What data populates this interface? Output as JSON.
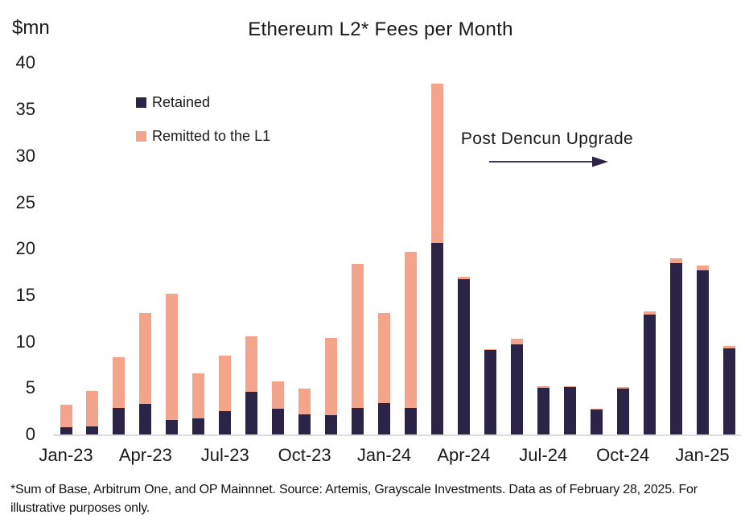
{
  "unit_label": "$mn",
  "title": "Ethereum L2* Fees per Month",
  "legend": {
    "retained_label": "Retained",
    "remitted_label": "Remitted to the L1"
  },
  "annotation": {
    "text": "Post Dencun Upgrade",
    "arrow_direction": "right"
  },
  "footnote": "*Sum of Base, Arbitrum One, and OP Mainnnet. Source: Artemis, Grayscale Investments. Data as of February 28, 2025. For illustrative purposes only.",
  "colors": {
    "retained": "#2b2447",
    "remitted": "#f4a48a",
    "axis_line": "#dcdcdc",
    "arrow": "#403d5e",
    "text": "#1a1a1a"
  },
  "chart_data": {
    "type": "bar",
    "stacked": true,
    "title": "Ethereum L2* Fees per Month",
    "ylabel": "$mn",
    "xlabel": "",
    "ylim": [
      0,
      40
    ],
    "y_ticks": [
      0,
      5,
      10,
      15,
      20,
      25,
      30,
      35,
      40
    ],
    "grid": false,
    "legend_position": "upper-left-inside",
    "x_tick_every": 3,
    "categories": [
      "Jan-23",
      "Feb-23",
      "Mar-23",
      "Apr-23",
      "May-23",
      "Jun-23",
      "Jul-23",
      "Aug-23",
      "Sep-23",
      "Oct-23",
      "Nov-23",
      "Dec-23",
      "Jan-24",
      "Feb-24",
      "Mar-24",
      "Apr-24",
      "May-24",
      "Jun-24",
      "Jul-24",
      "Aug-24",
      "Sep-24",
      "Oct-24",
      "Nov-24",
      "Dec-24",
      "Jan-25",
      "Feb-25"
    ],
    "visible_x_tick_labels": [
      "Jan-23",
      "Apr-23",
      "Jul-23",
      "Oct-23",
      "Jan-24",
      "Apr-24",
      "Jul-24",
      "Oct-24",
      "Jan-25"
    ],
    "series": [
      {
        "name": "Retained",
        "color": "#2b2447",
        "values": [
          0.8,
          0.9,
          2.9,
          3.3,
          1.6,
          1.7,
          2.5,
          4.6,
          2.8,
          2.2,
          2.1,
          2.9,
          3.4,
          2.9,
          20.6,
          16.7,
          9.1,
          9.7,
          5.0,
          5.1,
          2.7,
          4.9,
          12.9,
          18.5,
          17.7,
          9.3
        ]
      },
      {
        "name": "Remitted to the L1",
        "color": "#f4a48a",
        "values": [
          2.4,
          3.8,
          5.4,
          9.8,
          13.6,
          4.9,
          6.0,
          6.0,
          2.9,
          2.7,
          8.3,
          15.5,
          9.7,
          16.8,
          17.2,
          0.3,
          0.1,
          0.6,
          0.2,
          0.1,
          0.1,
          0.2,
          0.4,
          0.5,
          0.5,
          0.2
        ]
      }
    ],
    "annotations": [
      {
        "text": "Post Dencun Upgrade",
        "applies_to": "bars after Mar-24"
      }
    ]
  }
}
